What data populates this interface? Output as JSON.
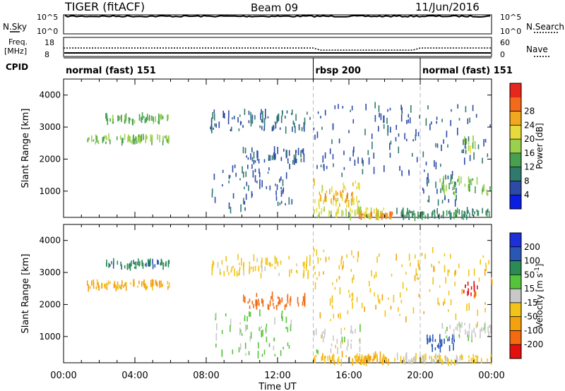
{
  "header": {
    "radar": "TIGER (fitACF)",
    "beam": "Beam 09",
    "date": "11/Jun/2016"
  },
  "noise_panel": {
    "left_label": "N.Sky",
    "right_label": "N.Search",
    "ticks_left": [
      "10^5",
      "10^0"
    ],
    "ticks_right": [
      "10^5",
      "10^0"
    ]
  },
  "freq_panel": {
    "left_label_line1": "Freq.",
    "left_label_line2": "[MHz]",
    "right_label": "Nave",
    "ticks_left": [
      "18",
      "8"
    ],
    "ticks_right": [
      "60",
      "0"
    ]
  },
  "cpid": {
    "label": "CPID",
    "segments": [
      {
        "name": "normal (fast) 151",
        "start_hour": 0,
        "end_hour": 14
      },
      {
        "name": "rbsp 200",
        "start_hour": 14,
        "end_hour": 20
      },
      {
        "name": "normal (fast) 151",
        "start_hour": 20,
        "end_hour": 24
      }
    ]
  },
  "chart_data": [
    {
      "type": "heatmap",
      "name": "power",
      "xlabel": "Time UT",
      "ylabel": "Slant Range [km]",
      "x_range_hours": [
        0,
        24
      ],
      "x_ticks": [
        "00:00",
        "04:00",
        "08:00",
        "12:00",
        "16:00",
        "20:00",
        "00:00"
      ],
      "ylim": [
        180,
        4500
      ],
      "y_ticks": [
        1000,
        2000,
        3000,
        4000
      ],
      "colorbar": {
        "label": "Power [dB]",
        "tick_labels": [
          "4",
          "8",
          "12",
          "16",
          "20",
          "24",
          "28"
        ],
        "colors": [
          "#0a1de0",
          "#2c4aa7",
          "#2f7a6d",
          "#47a050",
          "#9bd04e",
          "#e7da3c",
          "#f2a81e",
          "#f26a1a",
          "#e6281c"
        ]
      },
      "regions": [
        {
          "t": [
            1.3,
            5.9
          ],
          "r": [
            2500,
            2700
          ],
          "v": 17
        },
        {
          "t": [
            2.3,
            5.9
          ],
          "r": [
            3150,
            3350
          ],
          "v": 15
        },
        {
          "t": [
            8.2,
            13.8
          ],
          "r": [
            2900,
            3500
          ],
          "v": 8
        },
        {
          "t": [
            10.0,
            13.5
          ],
          "r": [
            1900,
            2300
          ],
          "v": 7
        },
        {
          "t": [
            8.3,
            12.8
          ],
          "r": [
            400,
            1800
          ],
          "v": 7
        },
        {
          "t": [
            14.0,
            16.6
          ],
          "r": [
            500,
            1300
          ],
          "v": 22
        },
        {
          "t": [
            14.3,
            16.2
          ],
          "r": [
            650,
            1000
          ],
          "v": 26
        },
        {
          "t": [
            14.0,
            18.0
          ],
          "r": [
            180,
            450
          ],
          "v": 20
        },
        {
          "t": [
            16.5,
            18.5
          ],
          "r": [
            180,
            350
          ],
          "v": 27
        },
        {
          "t": [
            18.5,
            24.0
          ],
          "r": [
            180,
            400
          ],
          "v": 12
        },
        {
          "t": [
            20.0,
            22.0
          ],
          "r": [
            600,
            1500
          ],
          "v": 8
        },
        {
          "t": [
            21.0,
            24.0
          ],
          "r": [
            900,
            1400
          ],
          "v": 16
        },
        {
          "t": [
            22.4,
            23.3
          ],
          "r": [
            2300,
            2700
          ],
          "v": 18
        },
        {
          "t": [
            14.0,
            24.0
          ],
          "r": [
            1500,
            3700
          ],
          "v": 7
        }
      ]
    },
    {
      "type": "heatmap",
      "name": "velocity",
      "xlabel": "Time UT",
      "ylabel": "Slant Range [km]",
      "x_range_hours": [
        0,
        24
      ],
      "x_ticks": [
        "00:00",
        "04:00",
        "08:00",
        "12:00",
        "16:00",
        "20:00",
        "00:00"
      ],
      "ylim": [
        180,
        4500
      ],
      "y_ticks": [
        1000,
        2000,
        3000,
        4000
      ],
      "colorbar": {
        "label": "Velocity [m s-1]",
        "tick_labels": [
          "200",
          "100",
          "50",
          "15",
          "-15",
          "-50",
          "-100",
          "-200"
        ],
        "colors": [
          "#1c2fd8",
          "#2a57b4",
          "#2c8a55",
          "#55c43a",
          "#c8c8c8",
          "#f2c419",
          "#f4a10f",
          "#f36a10",
          "#e41010"
        ]
      },
      "regions": [
        {
          "t": [
            1.3,
            5.9
          ],
          "r": [
            2500,
            2700
          ],
          "v": -60
        },
        {
          "t": [
            2.3,
            5.9
          ],
          "r": [
            3150,
            3350
          ],
          "v": 90
        },
        {
          "t": [
            8.2,
            13.8
          ],
          "r": [
            2900,
            3500
          ],
          "v": -30
        },
        {
          "t": [
            10.0,
            13.5
          ],
          "r": [
            1900,
            2300
          ],
          "v": -140
        },
        {
          "t": [
            8.3,
            12.8
          ],
          "r": [
            400,
            1800
          ],
          "v": 20
        },
        {
          "t": [
            14.0,
            16.6
          ],
          "r": [
            500,
            1300
          ],
          "v": 0
        },
        {
          "t": [
            14.0,
            18.0
          ],
          "r": [
            180,
            450
          ],
          "v": -40
        },
        {
          "t": [
            16.5,
            18.5
          ],
          "r": [
            180,
            350
          ],
          "v": -60
        },
        {
          "t": [
            18.5,
            24.0
          ],
          "r": [
            180,
            400
          ],
          "v": -20
        },
        {
          "t": [
            20.0,
            22.0
          ],
          "r": [
            600,
            1000
          ],
          "v": 120
        },
        {
          "t": [
            21.0,
            24.0
          ],
          "r": [
            900,
            1400
          ],
          "v": 0
        },
        {
          "t": [
            22.4,
            23.3
          ],
          "r": [
            2300,
            2700
          ],
          "v": -220
        },
        {
          "t": [
            14.0,
            24.0
          ],
          "r": [
            1500,
            3700
          ],
          "v": -40
        }
      ]
    }
  ]
}
